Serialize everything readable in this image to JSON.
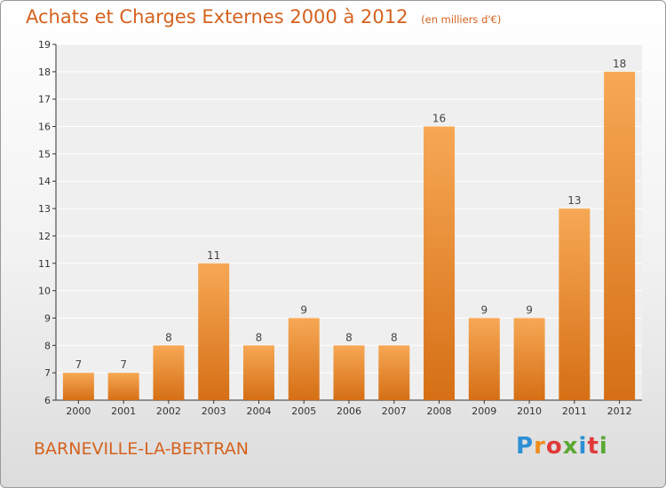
{
  "header": {
    "title": "Achats et Charges Externes 2000 à 2012",
    "subtitle": "(en milliers d'€)"
  },
  "footer": {
    "location": "BARNEVILLE-LA-BERTRAN",
    "brand": "Proxiti",
    "brand_colors": [
      "#2d8fd4",
      "#f08c1c",
      "#e03a3a",
      "#5aa832",
      "#2d8fd4",
      "#e03a3a",
      "#5aa832"
    ]
  },
  "colors": {
    "bar_light": "#f7a855",
    "bar_dark": "#d56f15",
    "text": "#d4621e",
    "axis": "#333333"
  },
  "chart_data": {
    "type": "bar",
    "categories": [
      "2000",
      "2001",
      "2002",
      "2003",
      "2004",
      "2005",
      "2006",
      "2007",
      "2008",
      "2009",
      "2010",
      "2011",
      "2012"
    ],
    "values": [
      7,
      7,
      8,
      11,
      8,
      9,
      8,
      8,
      16,
      9,
      9,
      13,
      18
    ],
    "data_labels": [
      "7",
      "7",
      "8",
      "11",
      "8",
      "9",
      "8",
      "8",
      "16",
      "9",
      "9",
      "13",
      "18"
    ],
    "yticks": [
      "6",
      "7",
      "8",
      "9",
      "10",
      "11",
      "12",
      "13",
      "14",
      "15",
      "16",
      "17",
      "18",
      "19"
    ],
    "ylim": [
      6,
      19
    ],
    "grid": true
  }
}
